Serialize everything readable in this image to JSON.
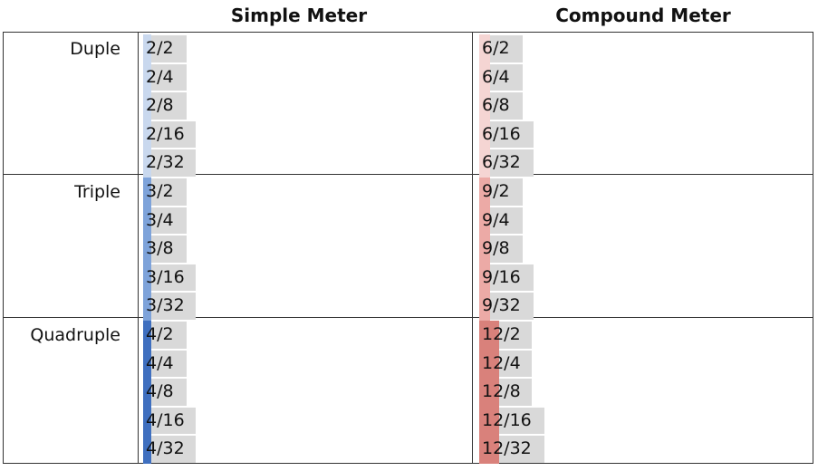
{
  "headers": {
    "simple": "Simple Meter",
    "compound": "Compound Meter"
  },
  "rows": [
    {
      "label": "Duple",
      "simple": [
        "2/2",
        "2/4",
        "2/8",
        "2/16",
        "2/32"
      ],
      "compound": [
        "6/2",
        "6/4",
        "6/8",
        "6/16",
        "6/32"
      ],
      "simple_color": "#c9d8ee",
      "compound_color": "#f5d5d3"
    },
    {
      "label": "Triple",
      "simple": [
        "3/2",
        "3/4",
        "3/8",
        "3/16",
        "3/32"
      ],
      "compound": [
        "9/2",
        "9/4",
        "9/8",
        "9/16",
        "9/32"
      ],
      "simple_color": "#7ea3da",
      "compound_color": "#ecaaa6"
    },
    {
      "label": "Quadruple",
      "simple": [
        "4/2",
        "4/4",
        "4/8",
        "4/16",
        "4/32"
      ],
      "compound": [
        "12/2",
        "12/4",
        "12/8",
        "12/16",
        "12/32"
      ],
      "simple_color": "#3f6fbf",
      "compound_color": "#d9817b"
    }
  ]
}
